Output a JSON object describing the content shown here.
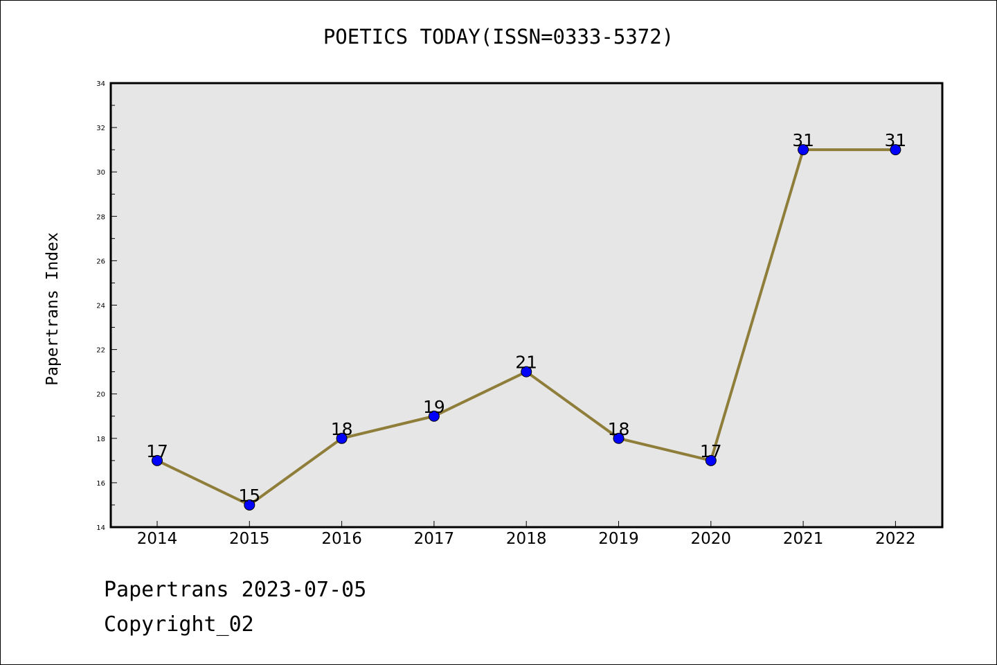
{
  "chart_data": {
    "type": "line",
    "title": "POETICS TODAY(ISSN=0333-5372)",
    "xlabel": "",
    "ylabel": "Papertrans Index",
    "categories": [
      "2014",
      "2015",
      "2016",
      "2017",
      "2018",
      "2019",
      "2020",
      "2021",
      "2022"
    ],
    "series": [
      {
        "values": [
          17,
          15,
          18,
          19,
          21,
          18,
          17,
          31,
          31
        ]
      }
    ],
    "ylim": [
      14,
      34
    ],
    "yticks": [
      14,
      16,
      18,
      20,
      22,
      24,
      26,
      28,
      30,
      32,
      34
    ],
    "line_color": "#8f7d3a",
    "marker_color": "#0000ff",
    "plot_background": "#e6e6e6",
    "grid": false,
    "legend": "none"
  },
  "footer": {
    "line1": "Papertrans 2023-07-05",
    "line2": "Copyright_02"
  }
}
